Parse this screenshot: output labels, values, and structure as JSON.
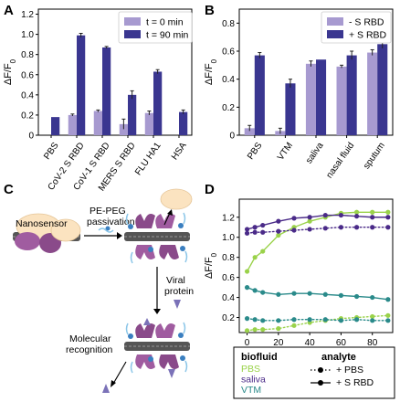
{
  "panels": {
    "A": "A",
    "B": "B",
    "C": "C",
    "D": "D"
  },
  "colors": {
    "light": "#a79ad0",
    "dark": "#3a3690",
    "pbs": "#9ad24a",
    "saliva": "#4a2a88",
    "vtm": "#2a8a8a"
  },
  "chart_data": [
    {
      "panel": "A",
      "type": "bar",
      "ylabel": "ΔF/F0",
      "ylim": [
        0,
        1.25
      ],
      "yticks": [
        0,
        0.2,
        0.4,
        0.6,
        0.8,
        1.0,
        1.2
      ],
      "ytick_labels": [
        "0",
        "0.2",
        "0.4",
        "0.6",
        "0.8",
        "1.0",
        "1.2"
      ],
      "categories": [
        "PBS",
        "CoV-2 S RBD",
        "CoV-1 S RBD",
        "MERS S RBD",
        "FLU HA1",
        "HSA"
      ],
      "series": [
        {
          "name": "t = 0 min",
          "values": [
            0.0,
            0.2,
            0.24,
            0.11,
            0.22,
            0.0
          ],
          "errors": [
            0.0,
            0.01,
            0.01,
            0.05,
            0.02,
            0.0
          ]
        },
        {
          "name": "t = 90 min",
          "values": [
            0.18,
            0.99,
            0.87,
            0.4,
            0.63,
            0.23
          ],
          "errors": [
            0.0,
            0.02,
            0.01,
            0.04,
            0.02,
            0.02
          ]
        }
      ],
      "legend_position": "top-right"
    },
    {
      "panel": "B",
      "type": "bar",
      "ylabel": "ΔF/F0",
      "ylim": [
        0,
        0.9
      ],
      "yticks": [
        0,
        0.2,
        0.4,
        0.6,
        0.8
      ],
      "ytick_labels": [
        "0",
        "0.2",
        "0.4",
        "0.6",
        "0.8"
      ],
      "categories": [
        "PBS",
        "VTM",
        "saliva",
        "nasal fluid",
        "sputum"
      ],
      "series": [
        {
          "name": "- S RBD",
          "values": [
            0.05,
            0.03,
            0.51,
            0.49,
            0.59
          ],
          "errors": [
            0.02,
            0.02,
            0.02,
            0.01,
            0.02
          ]
        },
        {
          "name": "+ S RBD",
          "values": [
            0.57,
            0.37,
            0.54,
            0.57,
            0.65
          ],
          "errors": [
            0.02,
            0.03,
            0.0,
            0.03,
            0.03
          ]
        }
      ],
      "legend_position": "top-right"
    },
    {
      "panel": "D",
      "type": "line",
      "ylabel": "ΔF/F0",
      "xlabel": "Time (min)",
      "xlim": [
        -5,
        93
      ],
      "ylim": [
        0.05,
        1.38
      ],
      "xticks": [
        0,
        20,
        40,
        60,
        80
      ],
      "yticks": [
        0.2,
        0.4,
        0.6,
        0.8,
        1.0,
        1.2
      ],
      "ytick_labels": [
        "0.2",
        "0.4",
        "0.6",
        "0.8",
        "1.0",
        "1.2"
      ],
      "series": [
        {
          "fluid": "PBS",
          "analyte": "+ S RBD",
          "x": [
            0,
            5,
            10,
            20,
            30,
            40,
            50,
            60,
            70,
            80,
            90
          ],
          "y": [
            0.66,
            0.8,
            0.86,
            1.02,
            1.1,
            1.16,
            1.2,
            1.24,
            1.25,
            1.25,
            1.25
          ]
        },
        {
          "fluid": "PBS",
          "analyte": "+ PBS",
          "x": [
            0,
            5,
            10,
            20,
            30,
            40,
            50,
            60,
            70,
            80,
            90
          ],
          "y": [
            0.07,
            0.08,
            0.08,
            0.09,
            0.12,
            0.15,
            0.17,
            0.19,
            0.2,
            0.21,
            0.22
          ]
        },
        {
          "fluid": "saliva",
          "analyte": "+ S RBD",
          "x": [
            0,
            5,
            10,
            20,
            30,
            40,
            50,
            60,
            70,
            80,
            90
          ],
          "y": [
            1.08,
            1.1,
            1.12,
            1.16,
            1.19,
            1.2,
            1.22,
            1.22,
            1.21,
            1.2,
            1.2
          ]
        },
        {
          "fluid": "saliva",
          "analyte": "+ PBS",
          "x": [
            0,
            5,
            10,
            20,
            30,
            40,
            50,
            60,
            70,
            80,
            90
          ],
          "y": [
            1.04,
            1.05,
            1.05,
            1.06,
            1.07,
            1.08,
            1.09,
            1.1,
            1.1,
            1.1,
            1.1
          ]
        },
        {
          "fluid": "VTM",
          "analyte": "+ S RBD",
          "x": [
            0,
            5,
            10,
            20,
            30,
            40,
            50,
            60,
            70,
            80,
            90
          ],
          "y": [
            0.5,
            0.47,
            0.45,
            0.43,
            0.44,
            0.44,
            0.43,
            0.42,
            0.41,
            0.4,
            0.38
          ]
        },
        {
          "fluid": "VTM",
          "analyte": "+ PBS",
          "x": [
            0,
            5,
            10,
            20,
            30,
            40,
            50,
            60,
            70,
            80,
            90
          ],
          "y": [
            0.19,
            0.18,
            0.17,
            0.17,
            0.18,
            0.18,
            0.18,
            0.17,
            0.18,
            0.17,
            0.17
          ]
        }
      ],
      "legend": {
        "biofluid_header": "biofluid",
        "analyte_header": "analyte",
        "fluids": [
          "PBS",
          "saliva",
          "VTM"
        ],
        "analytes": [
          "+ PBS",
          "+ S RBD"
        ]
      }
    }
  ],
  "schematic": {
    "nanosensor_label": "Nanosensor",
    "step1_label_line1": "PE-PEG",
    "step1_label_line2": "passivation",
    "step2_label_line1": "Viral",
    "step2_label_line2": "protein",
    "step3_label_line1": "Molecular",
    "step3_label_line2": "recognition"
  }
}
